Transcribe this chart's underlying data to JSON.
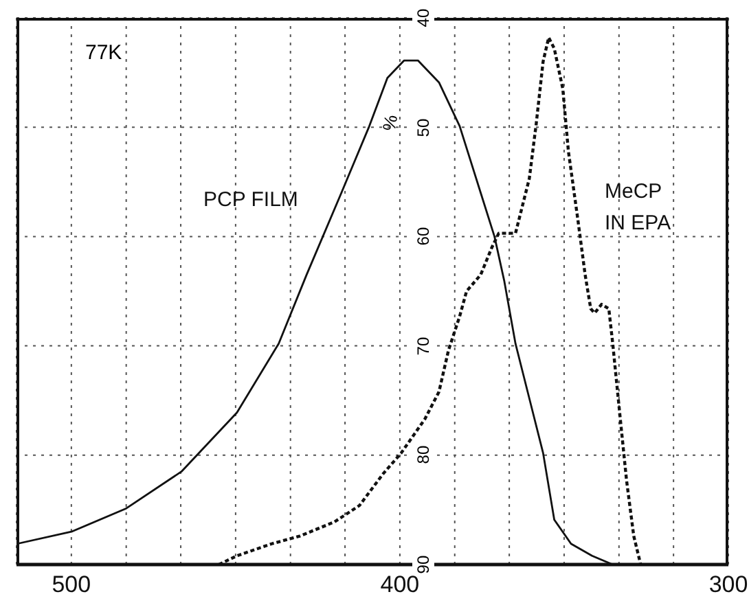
{
  "chart_data": {
    "type": "line",
    "ylabel": "%",
    "annotations": [
      "77K"
    ],
    "xlim": [
      516.7,
      300
    ],
    "xticks": [
      500,
      {
        "value": 483.3,
        "label": null
      },
      {
        "value": 466.7,
        "label": null
      },
      {
        "value": 450,
        "label": null
      },
      {
        "value": 433.3,
        "label": null
      },
      {
        "value": 416.7,
        "label": null
      },
      400,
      {
        "value": 383.3,
        "label": null
      },
      {
        "value": 366.7,
        "label": null
      },
      {
        "value": 350,
        "label": null
      },
      {
        "value": 333.3,
        "label": null
      },
      {
        "value": 316.7,
        "label": null
      },
      300
    ],
    "ylim": [
      90,
      40
    ],
    "yticks": [
      40,
      50,
      60,
      70,
      80,
      90
    ],
    "grid": true,
    "legend": false,
    "series": [
      {
        "name": "PCP FILM",
        "color": "#111111",
        "line_style": "solid",
        "x": [
          516.5,
          500,
          483.5,
          466.5,
          449.6,
          436.9,
          428.4,
          417.8,
          409.3,
          403.8,
          398.7,
          394.5,
          388.1,
          381.8,
          375.4,
          371.2,
          368.2,
          364.8,
          360.6,
          356.4,
          353.0,
          347.9,
          341.5,
          335.2
        ],
        "values": [
          88.1,
          87.0,
          84.9,
          81.5,
          76.1,
          69.8,
          63.5,
          56.0,
          49.9,
          45.5,
          43.9,
          43.9,
          45.9,
          49.9,
          56.0,
          60.0,
          64.1,
          69.8,
          74.8,
          79.8,
          85.9,
          88.1,
          89.2,
          90
        ]
      },
      {
        "name": "MeCP\nIN EPA",
        "color": "#111111",
        "line_style": "dashed",
        "x": [
          455.1,
          449.6,
          439.0,
          430.5,
          419.9,
          412.3,
          405.1,
          399.6,
          392.4,
          388.1,
          385.2,
          381.8,
          379.7,
          375.4,
          372.0,
          369.9,
          364.8,
          360.6,
          358.5,
          356.4,
          354.7,
          353.0,
          350.4,
          348.7,
          345.8,
          343.6,
          341.9,
          340.7,
          338.6,
          336.4,
          335.2,
          333.1,
          331.0,
          328.8,
          326.7
        ],
        "values": [
          90,
          89.2,
          88.1,
          87.4,
          86.1,
          84.6,
          81.7,
          79.8,
          76.7,
          74.2,
          70.4,
          67.3,
          65.0,
          63.5,
          61.0,
          59.7,
          59.7,
          54.7,
          49.7,
          44.0,
          41.8,
          42.8,
          46.5,
          52.2,
          58.5,
          63.5,
          66.6,
          67.0,
          66.2,
          66.6,
          69.8,
          76.1,
          82.3,
          87.4,
          90
        ]
      }
    ]
  }
}
